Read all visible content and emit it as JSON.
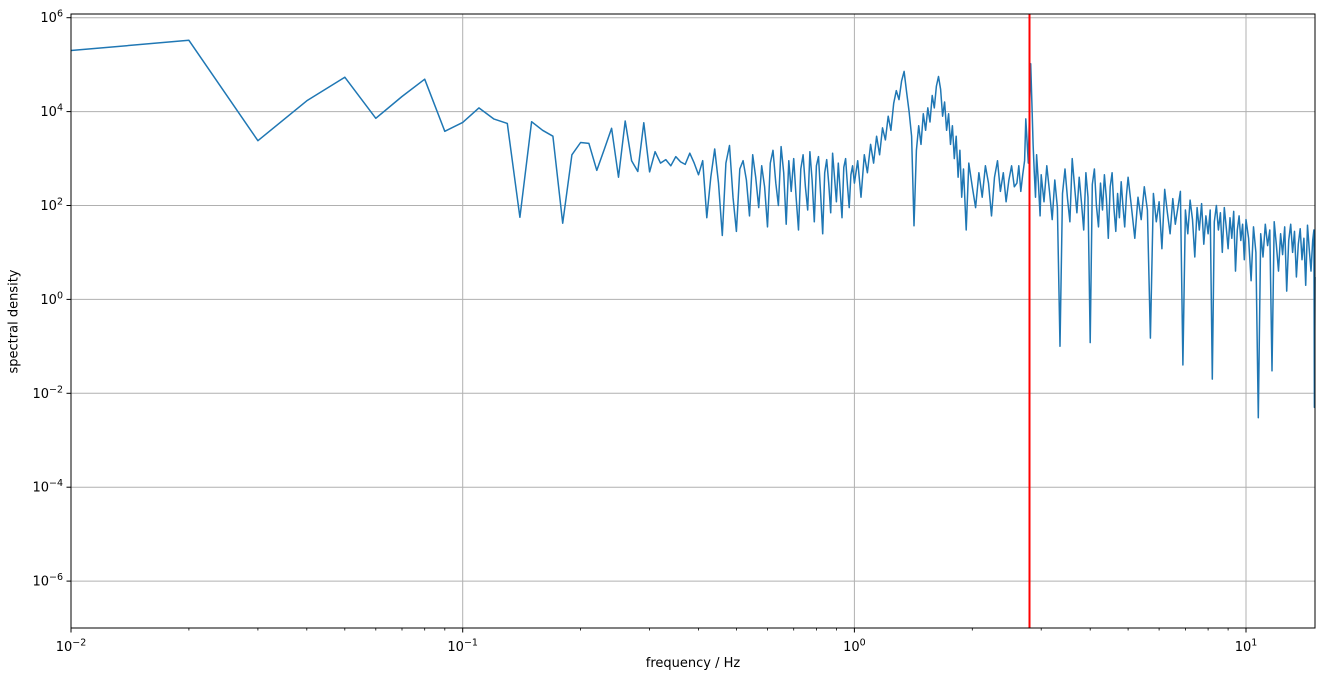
{
  "chart_data": {
    "type": "line",
    "title": "",
    "xlabel": "frequency / Hz",
    "ylabel": "spectral density",
    "x_scale": "log",
    "y_scale": "log",
    "xlim": [
      0.01,
      15
    ],
    "ylim": [
      1e-07,
      1200000.0
    ],
    "x_major_tick_exponents": [
      -2,
      -1,
      0,
      1
    ],
    "y_major_tick_exponents": [
      6,
      4,
      2,
      0,
      -2,
      -4,
      -6
    ],
    "x_minor_tick_multiples": [
      2,
      3,
      4,
      5,
      6,
      7,
      8,
      9
    ],
    "grid": true,
    "legend": "none",
    "colors": {
      "series_line": "#1f77b4",
      "marker_line": "#ff0000",
      "grid": "#b0b0b0",
      "spine": "#000000",
      "text": "#000000",
      "background": "#ffffff"
    },
    "marker_line": {
      "x": 2.8,
      "orientation": "vertical"
    },
    "series": [
      {
        "name": "spectral density",
        "points": [
          [
            0.01,
            200000
          ],
          [
            0.02,
            330000
          ],
          [
            0.03,
            2400
          ],
          [
            0.04,
            17000
          ],
          [
            0.05,
            54000
          ],
          [
            0.06,
            7200
          ],
          [
            0.07,
            21000
          ],
          [
            0.08,
            49000
          ],
          [
            0.09,
            3800
          ],
          [
            0.1,
            5900
          ],
          [
            0.11,
            12000
          ],
          [
            0.12,
            7000
          ],
          [
            0.13,
            5600
          ],
          [
            0.14,
            56
          ],
          [
            0.15,
            6100
          ],
          [
            0.16,
            4000
          ],
          [
            0.17,
            3000
          ],
          [
            0.18,
            42
          ],
          [
            0.19,
            1200
          ],
          [
            0.2,
            2200
          ],
          [
            0.21,
            2100
          ],
          [
            0.22,
            560
          ],
          [
            0.23,
            1600
          ],
          [
            0.24,
            4400
          ],
          [
            0.25,
            400
          ],
          [
            0.26,
            6300
          ],
          [
            0.27,
            900
          ],
          [
            0.28,
            530
          ],
          [
            0.29,
            5800
          ],
          [
            0.3,
            520
          ],
          [
            0.31,
            1400
          ],
          [
            0.32,
            800
          ],
          [
            0.33,
            950
          ],
          [
            0.34,
            700
          ],
          [
            0.35,
            1100
          ],
          [
            0.36,
            850
          ],
          [
            0.37,
            750
          ],
          [
            0.38,
            1300
          ],
          [
            0.39,
            800
          ],
          [
            0.4,
            450
          ],
          [
            0.41,
            900
          ],
          [
            0.42,
            55
          ],
          [
            0.43,
            400
          ],
          [
            0.44,
            1600
          ],
          [
            0.45,
            300
          ],
          [
            0.46,
            23
          ],
          [
            0.47,
            800
          ],
          [
            0.48,
            1900
          ],
          [
            0.49,
            150
          ],
          [
            0.5,
            28
          ],
          [
            0.51,
            600
          ],
          [
            0.52,
            900
          ],
          [
            0.53,
            350
          ],
          [
            0.54,
            60
          ],
          [
            0.55,
            1200
          ],
          [
            0.56,
            400
          ],
          [
            0.57,
            90
          ],
          [
            0.58,
            700
          ],
          [
            0.59,
            250
          ],
          [
            0.6,
            35
          ],
          [
            0.61,
            800
          ],
          [
            0.62,
            1500
          ],
          [
            0.63,
            300
          ],
          [
            0.64,
            100
          ],
          [
            0.65,
            1800
          ],
          [
            0.66,
            500
          ],
          [
            0.67,
            40
          ],
          [
            0.68,
            900
          ],
          [
            0.69,
            200
          ],
          [
            0.7,
            1000
          ],
          [
            0.71,
            150
          ],
          [
            0.72,
            30
          ],
          [
            0.73,
            600
          ],
          [
            0.74,
            1200
          ],
          [
            0.75,
            250
          ],
          [
            0.76,
            80
          ],
          [
            0.77,
            1400
          ],
          [
            0.78,
            350
          ],
          [
            0.79,
            45
          ],
          [
            0.8,
            700
          ],
          [
            0.81,
            1100
          ],
          [
            0.82,
            180
          ],
          [
            0.83,
            25
          ],
          [
            0.84,
            500
          ],
          [
            0.85,
            950
          ],
          [
            0.86,
            300
          ],
          [
            0.87,
            70
          ],
          [
            0.88,
            1300
          ],
          [
            0.89,
            400
          ],
          [
            0.9,
            120
          ],
          [
            0.91,
            800
          ],
          [
            0.92,
            200
          ],
          [
            0.93,
            55
          ],
          [
            0.94,
            650
          ],
          [
            0.95,
            1000
          ],
          [
            0.96,
            280
          ],
          [
            0.97,
            90
          ],
          [
            0.98,
            450
          ],
          [
            0.99,
            700
          ],
          [
            1.0,
            300
          ],
          [
            1.02,
            900
          ],
          [
            1.04,
            150
          ],
          [
            1.06,
            1200
          ],
          [
            1.08,
            500
          ],
          [
            1.1,
            2000
          ],
          [
            1.12,
            800
          ],
          [
            1.14,
            3000
          ],
          [
            1.16,
            1200
          ],
          [
            1.18,
            4500
          ],
          [
            1.2,
            2500
          ],
          [
            1.22,
            8000
          ],
          [
            1.24,
            4000
          ],
          [
            1.26,
            15000
          ],
          [
            1.28,
            28000
          ],
          [
            1.3,
            18000
          ],
          [
            1.32,
            45000
          ],
          [
            1.34,
            72000
          ],
          [
            1.36,
            25000
          ],
          [
            1.38,
            10000
          ],
          [
            1.4,
            3000
          ],
          [
            1.42,
            37
          ],
          [
            1.44,
            1500
          ],
          [
            1.46,
            5000
          ],
          [
            1.48,
            2000
          ],
          [
            1.5,
            9000
          ],
          [
            1.52,
            4000
          ],
          [
            1.54,
            12000
          ],
          [
            1.56,
            6000
          ],
          [
            1.58,
            22000
          ],
          [
            1.6,
            12000
          ],
          [
            1.62,
            35000
          ],
          [
            1.64,
            56000
          ],
          [
            1.66,
            30000
          ],
          [
            1.68,
            8000
          ],
          [
            1.7,
            16000
          ],
          [
            1.72,
            4000
          ],
          [
            1.74,
            9000
          ],
          [
            1.76,
            2000
          ],
          [
            1.78,
            5000
          ],
          [
            1.8,
            1000
          ],
          [
            1.82,
            3000
          ],
          [
            1.84,
            400
          ],
          [
            1.86,
            1500
          ],
          [
            1.88,
            150
          ],
          [
            1.9,
            600
          ],
          [
            1.93,
            30
          ],
          [
            1.96,
            800
          ],
          [
            2.0,
            250
          ],
          [
            2.04,
            90
          ],
          [
            2.08,
            500
          ],
          [
            2.12,
            150
          ],
          [
            2.16,
            700
          ],
          [
            2.2,
            300
          ],
          [
            2.24,
            60
          ],
          [
            2.28,
            400
          ],
          [
            2.32,
            900
          ],
          [
            2.36,
            200
          ],
          [
            2.4,
            500
          ],
          [
            2.44,
            120
          ],
          [
            2.48,
            350
          ],
          [
            2.52,
            700
          ],
          [
            2.56,
            250
          ],
          [
            2.6,
            300
          ],
          [
            2.63,
            700
          ],
          [
            2.66,
            200
          ],
          [
            2.69,
            450
          ],
          [
            2.72,
            900
          ],
          [
            2.74,
            7000
          ],
          [
            2.76,
            2500
          ],
          [
            2.78,
            800
          ],
          [
            2.8,
            10000
          ],
          [
            2.82,
            105000
          ],
          [
            2.84,
            15000
          ],
          [
            2.86,
            2000
          ],
          [
            2.88,
            500
          ],
          [
            2.9,
            150
          ],
          [
            2.92,
            1200
          ],
          [
            2.95,
            300
          ],
          [
            2.98,
            60
          ],
          [
            3.0,
            450
          ],
          [
            3.05,
            120
          ],
          [
            3.1,
            700
          ],
          [
            3.15,
            200
          ],
          [
            3.2,
            50
          ],
          [
            3.25,
            350
          ],
          [
            3.3,
            90
          ],
          [
            3.35,
            0.1
          ],
          [
            3.4,
            180
          ],
          [
            3.45,
            600
          ],
          [
            3.5,
            140
          ],
          [
            3.55,
            45
          ],
          [
            3.6,
            1000
          ],
          [
            3.65,
            250
          ],
          [
            3.7,
            70
          ],
          [
            3.75,
            400
          ],
          [
            3.8,
            120
          ],
          [
            3.85,
            30
          ],
          [
            3.9,
            500
          ],
          [
            3.95,
            150
          ],
          [
            4.0,
            0.12
          ],
          [
            4.05,
            280
          ],
          [
            4.1,
            600
          ],
          [
            4.15,
            100
          ],
          [
            4.2,
            35
          ],
          [
            4.25,
            300
          ],
          [
            4.3,
            80
          ],
          [
            4.35,
            450
          ],
          [
            4.4,
            140
          ],
          [
            4.45,
            20
          ],
          [
            4.5,
            250
          ],
          [
            4.55,
            500
          ],
          [
            4.6,
            90
          ],
          [
            4.65,
            28
          ],
          [
            4.7,
            180
          ],
          [
            4.75,
            55
          ],
          [
            4.8,
            320
          ],
          [
            4.85,
            100
          ],
          [
            4.9,
            35
          ],
          [
            4.95,
            160
          ],
          [
            5.0,
            400
          ],
          [
            5.1,
            90
          ],
          [
            5.2,
            20
          ],
          [
            5.3,
            150
          ],
          [
            5.4,
            50
          ],
          [
            5.5,
            250
          ],
          [
            5.6,
            80
          ],
          [
            5.7,
            0.15
          ],
          [
            5.8,
            180
          ],
          [
            5.9,
            45
          ],
          [
            6.0,
            120
          ],
          [
            6.1,
            12
          ],
          [
            6.2,
            220
          ],
          [
            6.3,
            70
          ],
          [
            6.4,
            25
          ],
          [
            6.5,
            140
          ],
          [
            6.6,
            40
          ],
          [
            6.7,
            90
          ],
          [
            6.8,
            200
          ],
          [
            6.9,
            0.04
          ],
          [
            7.0,
            80
          ],
          [
            7.1,
            25
          ],
          [
            7.2,
            130
          ],
          [
            7.3,
            50
          ],
          [
            7.4,
            8
          ],
          [
            7.5,
            90
          ],
          [
            7.6,
            30
          ],
          [
            7.7,
            110
          ],
          [
            7.8,
            15
          ],
          [
            7.9,
            60
          ],
          [
            8.0,
            25
          ],
          [
            8.1,
            80
          ],
          [
            8.2,
            0.02
          ],
          [
            8.3,
            45
          ],
          [
            8.4,
            100
          ],
          [
            8.5,
            30
          ],
          [
            8.6,
            70
          ],
          [
            8.7,
            10
          ],
          [
            8.8,
            90
          ],
          [
            8.9,
            35
          ],
          [
            9.0,
            12
          ],
          [
            9.1,
            55
          ],
          [
            9.2,
            20
          ],
          [
            9.3,
            75
          ],
          [
            9.4,
            4
          ],
          [
            9.5,
            30
          ],
          [
            9.6,
            60
          ],
          [
            9.7,
            18
          ],
          [
            9.8,
            40
          ],
          [
            9.9,
            7
          ],
          [
            10.0,
            50
          ],
          [
            10.15,
            20
          ],
          [
            10.3,
            2.5
          ],
          [
            10.45,
            35
          ],
          [
            10.6,
            10
          ],
          [
            10.75,
            0.003
          ],
          [
            10.9,
            25
          ],
          [
            11.05,
            8
          ],
          [
            11.2,
            40
          ],
          [
            11.35,
            14
          ],
          [
            11.5,
            30
          ],
          [
            11.65,
            0.03
          ],
          [
            11.8,
            45
          ],
          [
            11.95,
            15
          ],
          [
            12.1,
            4
          ],
          [
            12.25,
            25
          ],
          [
            12.4,
            9
          ],
          [
            12.55,
            35
          ],
          [
            12.7,
            1.5
          ],
          [
            12.85,
            18
          ],
          [
            13.0,
            40
          ],
          [
            13.15,
            10
          ],
          [
            13.3,
            28
          ],
          [
            13.45,
            3
          ],
          [
            13.6,
            15
          ],
          [
            13.75,
            32
          ],
          [
            13.9,
            7
          ],
          [
            14.05,
            20
          ],
          [
            14.2,
            2
          ],
          [
            14.35,
            38
          ],
          [
            14.5,
            12
          ],
          [
            14.65,
            4
          ],
          [
            14.8,
            18
          ],
          [
            14.9,
            30
          ],
          [
            14.95,
            0.005
          ],
          [
            15.0,
            3
          ]
        ]
      }
    ]
  }
}
